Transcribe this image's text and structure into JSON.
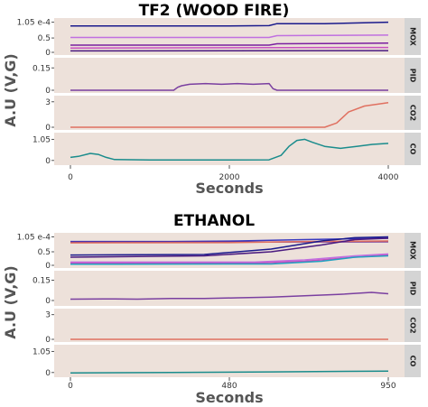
{
  "chart_data": [
    {
      "type": "line",
      "title": "TF2 (WOOD FIRE)",
      "xlabel": "Seconds",
      "ylabel": "A.U (V,G)",
      "x_ticks": [
        "0",
        "2000",
        "4000"
      ],
      "xlim": [
        0,
        4000
      ],
      "facets": [
        {
          "label": "MOX",
          "ylim": [
            0,
            1.1
          ],
          "y_ticks": [
            {
              "v": 1.05,
              "t": "1.05 e-4"
            },
            {
              "v": 0.5,
              "t": "0.5"
            },
            {
              "v": 0,
              "t": "0"
            }
          ],
          "series": [
            {
              "color": "#1a1a8c",
              "points": [
                [
                  0,
                  0.92
                ],
                [
                  1000,
                  0.92
                ],
                [
                  2000,
                  0.92
                ],
                [
                  2500,
                  0.93
                ],
                [
                  2600,
                  1.0
                ],
                [
                  3200,
                  1.0
                ],
                [
                  4000,
                  1.05
                ]
              ]
            },
            {
              "color": "#c070e0",
              "points": [
                [
                  0,
                  0.52
                ],
                [
                  2500,
                  0.52
                ],
                [
                  2600,
                  0.58
                ],
                [
                  4000,
                  0.6
                ]
              ]
            },
            {
              "color": "#7a20a0",
              "points": [
                [
                  0,
                  0.25
                ],
                [
                  2500,
                  0.25
                ],
                [
                  2600,
                  0.3
                ],
                [
                  4000,
                  0.32
                ]
              ]
            },
            {
              "color": "#c850c0",
              "points": [
                [
                  0,
                  0.15
                ],
                [
                  4000,
                  0.17
                ]
              ]
            },
            {
              "color": "#4a1a80",
              "points": [
                [
                  0,
                  0.05
                ],
                [
                  4000,
                  0.06
                ]
              ]
            }
          ]
        },
        {
          "label": "PID",
          "ylim": [
            0,
            0.2
          ],
          "y_ticks": [
            {
              "v": 0.15,
              "t": "0.15"
            },
            {
              "v": 0,
              "t": "0"
            }
          ],
          "series": [
            {
              "color": "#7a3fa0",
              "points": [
                [
                  0,
                  0.0
                ],
                [
                  1300,
                  0.0
                ],
                [
                  1350,
                  0.02
                ],
                [
                  1400,
                  0.03
                ],
                [
                  1500,
                  0.04
                ],
                [
                  1700,
                  0.045
                ],
                [
                  1900,
                  0.04
                ],
                [
                  2100,
                  0.045
                ],
                [
                  2300,
                  0.04
                ],
                [
                  2500,
                  0.045
                ],
                [
                  2550,
                  0.01
                ],
                [
                  2600,
                  0.0
                ],
                [
                  4000,
                  0.0
                ]
              ]
            }
          ]
        },
        {
          "label": "CO2",
          "ylim": [
            0,
            3.4
          ],
          "y_ticks": [
            {
              "v": 3,
              "t": "3"
            },
            {
              "v": 0,
              "t": "0"
            }
          ],
          "series": [
            {
              "color": "#e07060",
              "points": [
                [
                  0,
                  0.0
                ],
                [
                  3200,
                  0.0
                ],
                [
                  3350,
                  0.5
                ],
                [
                  3500,
                  1.8
                ],
                [
                  3700,
                  2.5
                ],
                [
                  4000,
                  2.9
                ]
              ]
            }
          ]
        },
        {
          "label": "CO",
          "ylim": [
            -0.1,
            1.25
          ],
          "y_ticks": [
            {
              "v": 1.05,
              "t": "1.05"
            },
            {
              "v": 0,
              "t": "0"
            }
          ],
          "series": [
            {
              "color": "#1a8c8c",
              "points": [
                [
                  0,
                  0.15
                ],
                [
                  100,
                  0.2
                ],
                [
                  250,
                  0.35
                ],
                [
                  350,
                  0.3
                ],
                [
                  450,
                  0.15
                ],
                [
                  550,
                  0.05
                ],
                [
                  1000,
                  0.02
                ],
                [
                  2000,
                  0.02
                ],
                [
                  2500,
                  0.03
                ],
                [
                  2650,
                  0.25
                ],
                [
                  2750,
                  0.7
                ],
                [
                  2850,
                  1.0
                ],
                [
                  2950,
                  1.05
                ],
                [
                  3050,
                  0.9
                ],
                [
                  3200,
                  0.7
                ],
                [
                  3400,
                  0.6
                ],
                [
                  3600,
                  0.7
                ],
                [
                  3800,
                  0.8
                ],
                [
                  4000,
                  0.85
                ]
              ]
            }
          ]
        }
      ]
    },
    {
      "type": "line",
      "title": "ETHANOL",
      "xlabel": "Seconds",
      "ylabel": "A.U (V,G)",
      "x_ticks": [
        "0",
        "480",
        "950"
      ],
      "xlim": [
        0,
        950
      ],
      "facets": [
        {
          "label": "MOX",
          "ylim": [
            0,
            1.1
          ],
          "y_ticks": [
            {
              "v": 1.05,
              "t": "1.05 e-4"
            },
            {
              "v": 0.5,
              "t": "0.5"
            },
            {
              "v": 0,
              "t": "0"
            }
          ],
          "series": [
            {
              "color": "#3a3ac0",
              "points": [
                [
                  0,
                  0.88
                ],
                [
                  300,
                  0.88
                ],
                [
                  500,
                  0.9
                ],
                [
                  700,
                  0.95
                ],
                [
                  950,
                  1.0
                ]
              ]
            },
            {
              "color": "#6a2a90",
              "points": [
                [
                  0,
                  0.85
                ],
                [
                  500,
                  0.86
                ],
                [
                  950,
                  0.87
                ]
              ]
            },
            {
              "color": "#e07060",
              "points": [
                [
                  0,
                  0.83
                ],
                [
                  500,
                  0.84
                ],
                [
                  700,
                  0.88
                ],
                [
                  950,
                  0.9
                ]
              ]
            },
            {
              "color": "#1a1a8c",
              "points": [
                [
                  0,
                  0.38
                ],
                [
                  400,
                  0.4
                ],
                [
                  600,
                  0.6
                ],
                [
                  750,
                  0.9
                ],
                [
                  850,
                  1.02
                ],
                [
                  950,
                  1.05
                ]
              ]
            },
            {
              "color": "#4a1a80",
              "points": [
                [
                  0,
                  0.3
                ],
                [
                  400,
                  0.35
                ],
                [
                  600,
                  0.5
                ],
                [
                  750,
                  0.75
                ],
                [
                  850,
                  0.95
                ],
                [
                  950,
                  1.0
                ]
              ]
            },
            {
              "color": "#c070e0",
              "points": [
                [
                  0,
                  0.12
                ],
                [
                  550,
                  0.12
                ],
                [
                  700,
                  0.2
                ],
                [
                  850,
                  0.35
                ],
                [
                  950,
                  0.42
                ]
              ]
            },
            {
              "color": "#c850c0",
              "points": [
                [
                  0,
                  0.08
                ],
                [
                  550,
                  0.08
                ],
                [
                  700,
                  0.15
                ],
                [
                  850,
                  0.3
                ],
                [
                  950,
                  0.38
                ]
              ]
            },
            {
              "color": "#20a0c0",
              "points": [
                [
                  0,
                  0.04
                ],
                [
                  600,
                  0.05
                ],
                [
                  750,
                  0.15
                ],
                [
                  850,
                  0.3
                ],
                [
                  950,
                  0.35
                ]
              ]
            }
          ]
        },
        {
          "label": "PID",
          "ylim": [
            -0.02,
            0.2
          ],
          "y_ticks": [
            {
              "v": 0.15,
              "t": "0.15"
            },
            {
              "v": 0,
              "t": "0"
            }
          ],
          "series": [
            {
              "color": "#7a3fa0",
              "points": [
                [
                  0,
                  0.01
                ],
                [
                  100,
                  0.012
                ],
                [
                  200,
                  0.01
                ],
                [
                  300,
                  0.015
                ],
                [
                  400,
                  0.015
                ],
                [
                  500,
                  0.02
                ],
                [
                  600,
                  0.025
                ],
                [
                  700,
                  0.035
                ],
                [
                  800,
                  0.045
                ],
                [
                  900,
                  0.06
                ],
                [
                  950,
                  0.05
                ]
              ]
            }
          ]
        },
        {
          "label": "CO2",
          "ylim": [
            0,
            3.4
          ],
          "y_ticks": [
            {
              "v": 3,
              "t": "3"
            },
            {
              "v": 0,
              "t": "0"
            }
          ],
          "series": [
            {
              "color": "#e07060",
              "points": [
                [
                  0,
                  0.0
                ],
                [
                  950,
                  0.0
                ]
              ]
            }
          ]
        },
        {
          "label": "CO",
          "ylim": [
            -0.1,
            1.25
          ],
          "y_ticks": [
            {
              "v": 1.05,
              "t": "1.05"
            },
            {
              "v": 0,
              "t": "0"
            }
          ],
          "series": [
            {
              "color": "#1a8c8c",
              "points": [
                [
                  0,
                  -0.02
                ],
                [
                  300,
                  0.0
                ],
                [
                  600,
                  0.03
                ],
                [
                  950,
                  0.07
                ]
              ]
            }
          ]
        }
      ]
    }
  ]
}
